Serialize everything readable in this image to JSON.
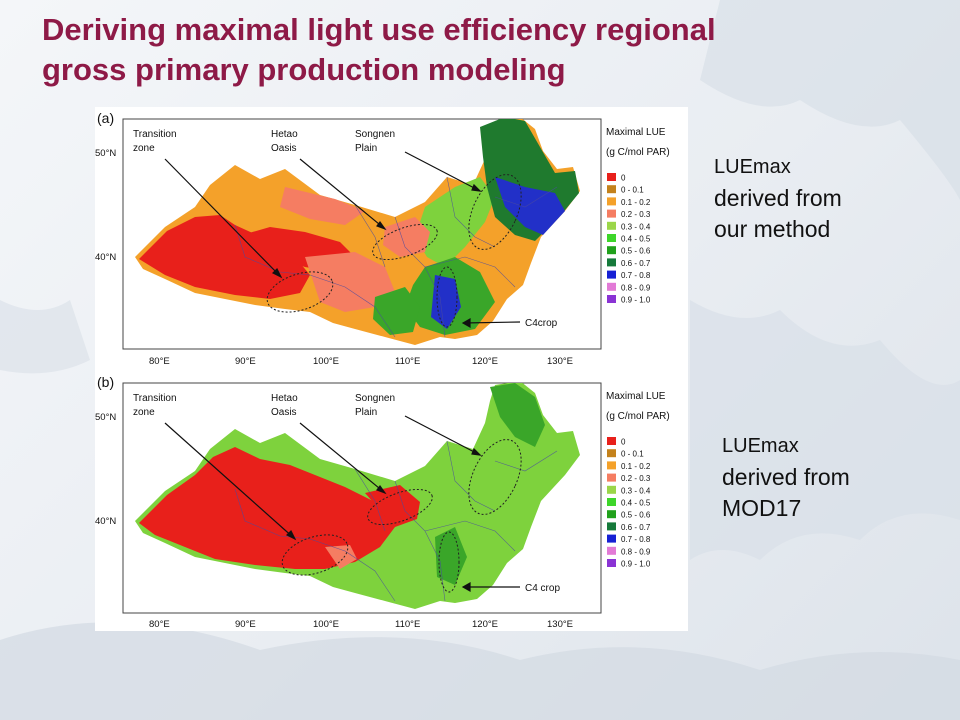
{
  "slide": {
    "title_lines": [
      "Deriving maximal light use efficiency regional",
      "gross primary production modeling"
    ]
  },
  "panels": [
    {
      "label": "(a)",
      "caption": [
        "LUEmax",
        "derived from",
        "our method"
      ],
      "regions": [
        "Transition",
        "zone",
        "Hetao",
        "Oasis",
        "Songnen",
        "Plain"
      ],
      "crop_label": "C4crop"
    },
    {
      "label": "(b)",
      "caption": [
        "LUEmax",
        "derived from",
        "MOD17"
      ],
      "regions": [
        "Transition",
        "zone",
        "Hetao",
        "Oasis",
        "Songnen",
        "Plain"
      ],
      "crop_label": "C4 crop"
    }
  ],
  "legend": {
    "title_lines": [
      "Maximal LUE",
      "(g C/mol PAR)"
    ],
    "entries": [
      {
        "label": "0",
        "color": "#e8201b"
      },
      {
        "label": "0 - 0.1",
        "color": "#c4821c"
      },
      {
        "label": "0.1 - 0.2",
        "color": "#f4a12a"
      },
      {
        "label": "0.2 - 0.3",
        "color": "#f57d62"
      },
      {
        "label": "0.3 - 0.4",
        "color": "#9bd649"
      },
      {
        "label": "0.4 - 0.5",
        "color": "#3ed62a"
      },
      {
        "label": "0.5 - 0.6",
        "color": "#21a11c"
      },
      {
        "label": "0.6 - 0.7",
        "color": "#167a3b"
      },
      {
        "label": "0.7 - 0.8",
        "color": "#1620d4"
      },
      {
        "label": "0.8 - 0.9",
        "color": "#e27ad6"
      },
      {
        "label": "0.9 - 1.0",
        "color": "#8a33d4"
      }
    ]
  },
  "axes": {
    "lat_labels": [
      "50°N",
      "40°N"
    ],
    "lon_labels": [
      "80°E",
      "90°E",
      "100°E",
      "110°E",
      "120°E",
      "130°E"
    ]
  },
  "colors": {
    "title": "#8e1a47",
    "red": "#e8201b",
    "orange": "#f4a12a",
    "salmon": "#f57d62",
    "lightgreen": "#7ed23d",
    "green": "#3aa629",
    "darkgreen": "#1f7a2e",
    "blue": "#2230c8"
  }
}
